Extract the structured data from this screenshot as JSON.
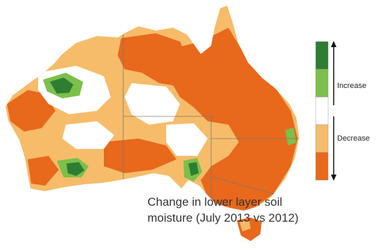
{
  "caption": {
    "line1": "Change in lower layer soil",
    "line2": "moisture (July 2013 vs 2012)"
  },
  "legend": {
    "increase_label": "Increase",
    "decrease_label": "Decrease",
    "swatches": [
      {
        "name": "strong-increase",
        "color": "#2e7d32"
      },
      {
        "name": "increase",
        "color": "#7cc04b"
      },
      {
        "name": "no-change",
        "color": "#ffffff"
      },
      {
        "name": "decrease",
        "color": "#f6bc6a"
      },
      {
        "name": "strong-decrease",
        "color": "#e8681c"
      }
    ]
  },
  "colors": {
    "strong_decrease": "#e8681c",
    "decrease": "#f6bc6a",
    "increase": "#7cc04b",
    "strong_increase": "#2e7d32",
    "state_border": "#777777"
  }
}
